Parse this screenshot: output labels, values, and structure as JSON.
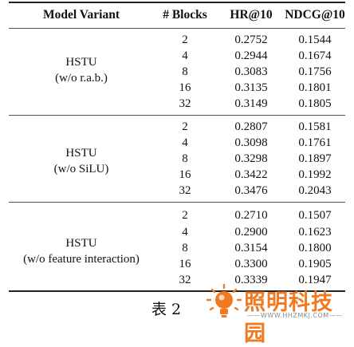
{
  "table": {
    "headers": [
      "Model Variant",
      "# Blocks",
      "HR@10",
      "NDCG@10"
    ],
    "groups": [
      {
        "name_lines": [
          "HSTU",
          "(w/o r.a.b.)"
        ],
        "rows": [
          [
            "2",
            "0.2752",
            "0.1544"
          ],
          [
            "4",
            "0.2944",
            "0.1674"
          ],
          [
            "8",
            "0.3083",
            "0.1756"
          ],
          [
            "16",
            "0.3135",
            "0.1801"
          ],
          [
            "32",
            "0.3149",
            "0.1805"
          ]
        ]
      },
      {
        "name_lines": [
          "HSTU",
          "(w/o SiLU)"
        ],
        "rows": [
          [
            "2",
            "0.2807",
            "0.1581"
          ],
          [
            "4",
            "0.3098",
            "0.1761"
          ],
          [
            "8",
            "0.3298",
            "0.1897"
          ],
          [
            "16",
            "0.3422",
            "0.1992"
          ],
          [
            "32",
            "0.3476",
            "0.2043"
          ]
        ]
      },
      {
        "name_lines": [
          "HSTU",
          "(w/o feature interaction)"
        ],
        "rows": [
          [
            "2",
            "0.2710",
            "0.1507"
          ],
          [
            "4",
            "0.2900",
            "0.1623"
          ],
          [
            "8",
            "0.3154",
            "0.1800"
          ],
          [
            "16",
            "0.3300",
            "0.1905"
          ],
          [
            "32",
            "0.3339",
            "0.1947"
          ]
        ]
      }
    ]
  },
  "caption": "表 2",
  "watermark": {
    "title": "照明科技园",
    "url": "——WWW.HHZMKJ.COM——",
    "color": "#f07a22"
  }
}
